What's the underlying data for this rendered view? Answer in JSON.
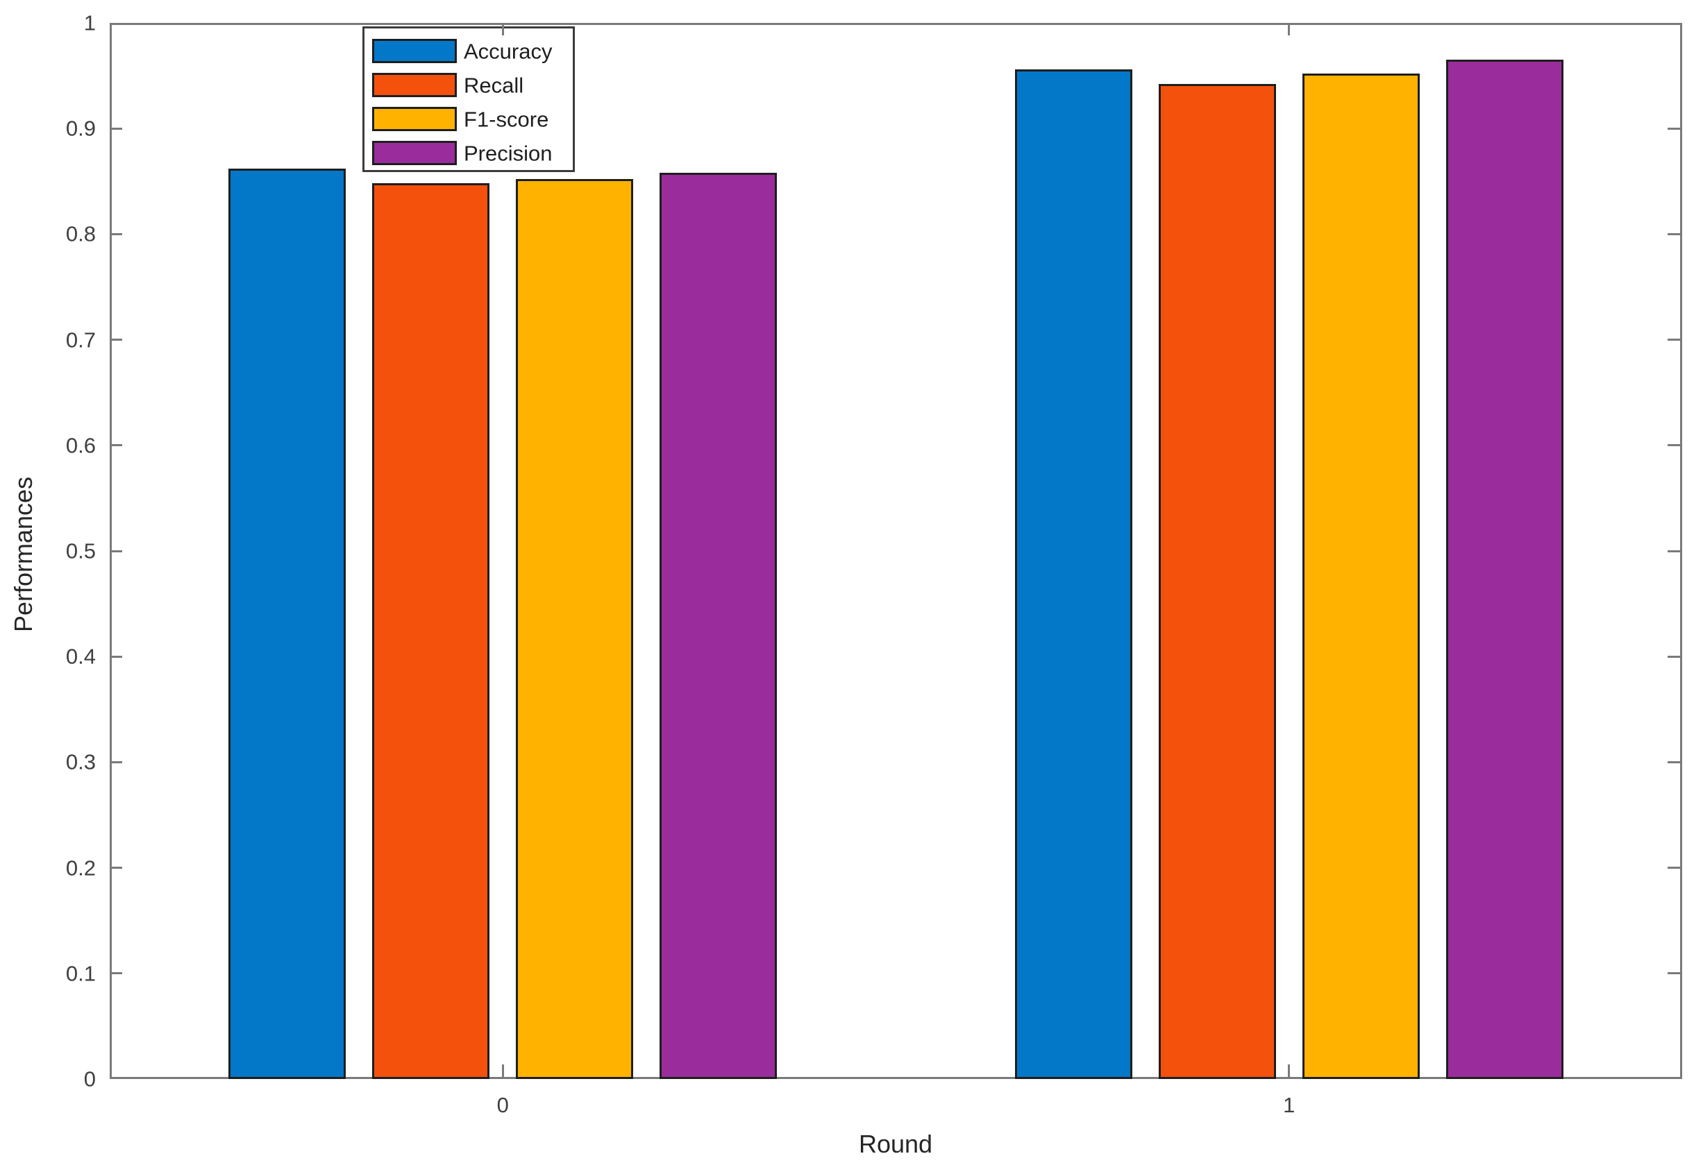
{
  "chart_data": {
    "type": "bar",
    "title": "",
    "xlabel": "Round",
    "ylabel": "Performances",
    "categories": [
      "0",
      "1"
    ],
    "series": [
      {
        "name": "Accuracy",
        "color": "#0478C8",
        "values": [
          0.862,
          0.956
        ]
      },
      {
        "name": "Recall",
        "color": "#F4510C",
        "values": [
          0.848,
          0.942
        ]
      },
      {
        "name": "F1-score",
        "color": "#FFB300",
        "values": [
          0.852,
          0.952
        ]
      },
      {
        "name": "Precision",
        "color": "#9A2D9B",
        "values": [
          0.858,
          0.965
        ]
      }
    ],
    "ylim": [
      0,
      1
    ],
    "ytick_step": 0.1,
    "ytick_labels": [
      "0",
      "0.1",
      "0.2",
      "0.3",
      "0.4",
      "0.5",
      "0.6",
      "0.7",
      "0.8",
      "0.9",
      "1"
    ],
    "grid": false,
    "legend_position": "inside-top-left",
    "legend_entries": [
      "Accuracy",
      "Recall",
      "F1-score",
      "Precision"
    ],
    "bar_edge_color": "#1E1E1E",
    "axis_color": "#7A7A7A",
    "tick_label_color": "#3F3F3F",
    "axis_label_color": "#262626",
    "background_color": "#FFFFFF"
  }
}
